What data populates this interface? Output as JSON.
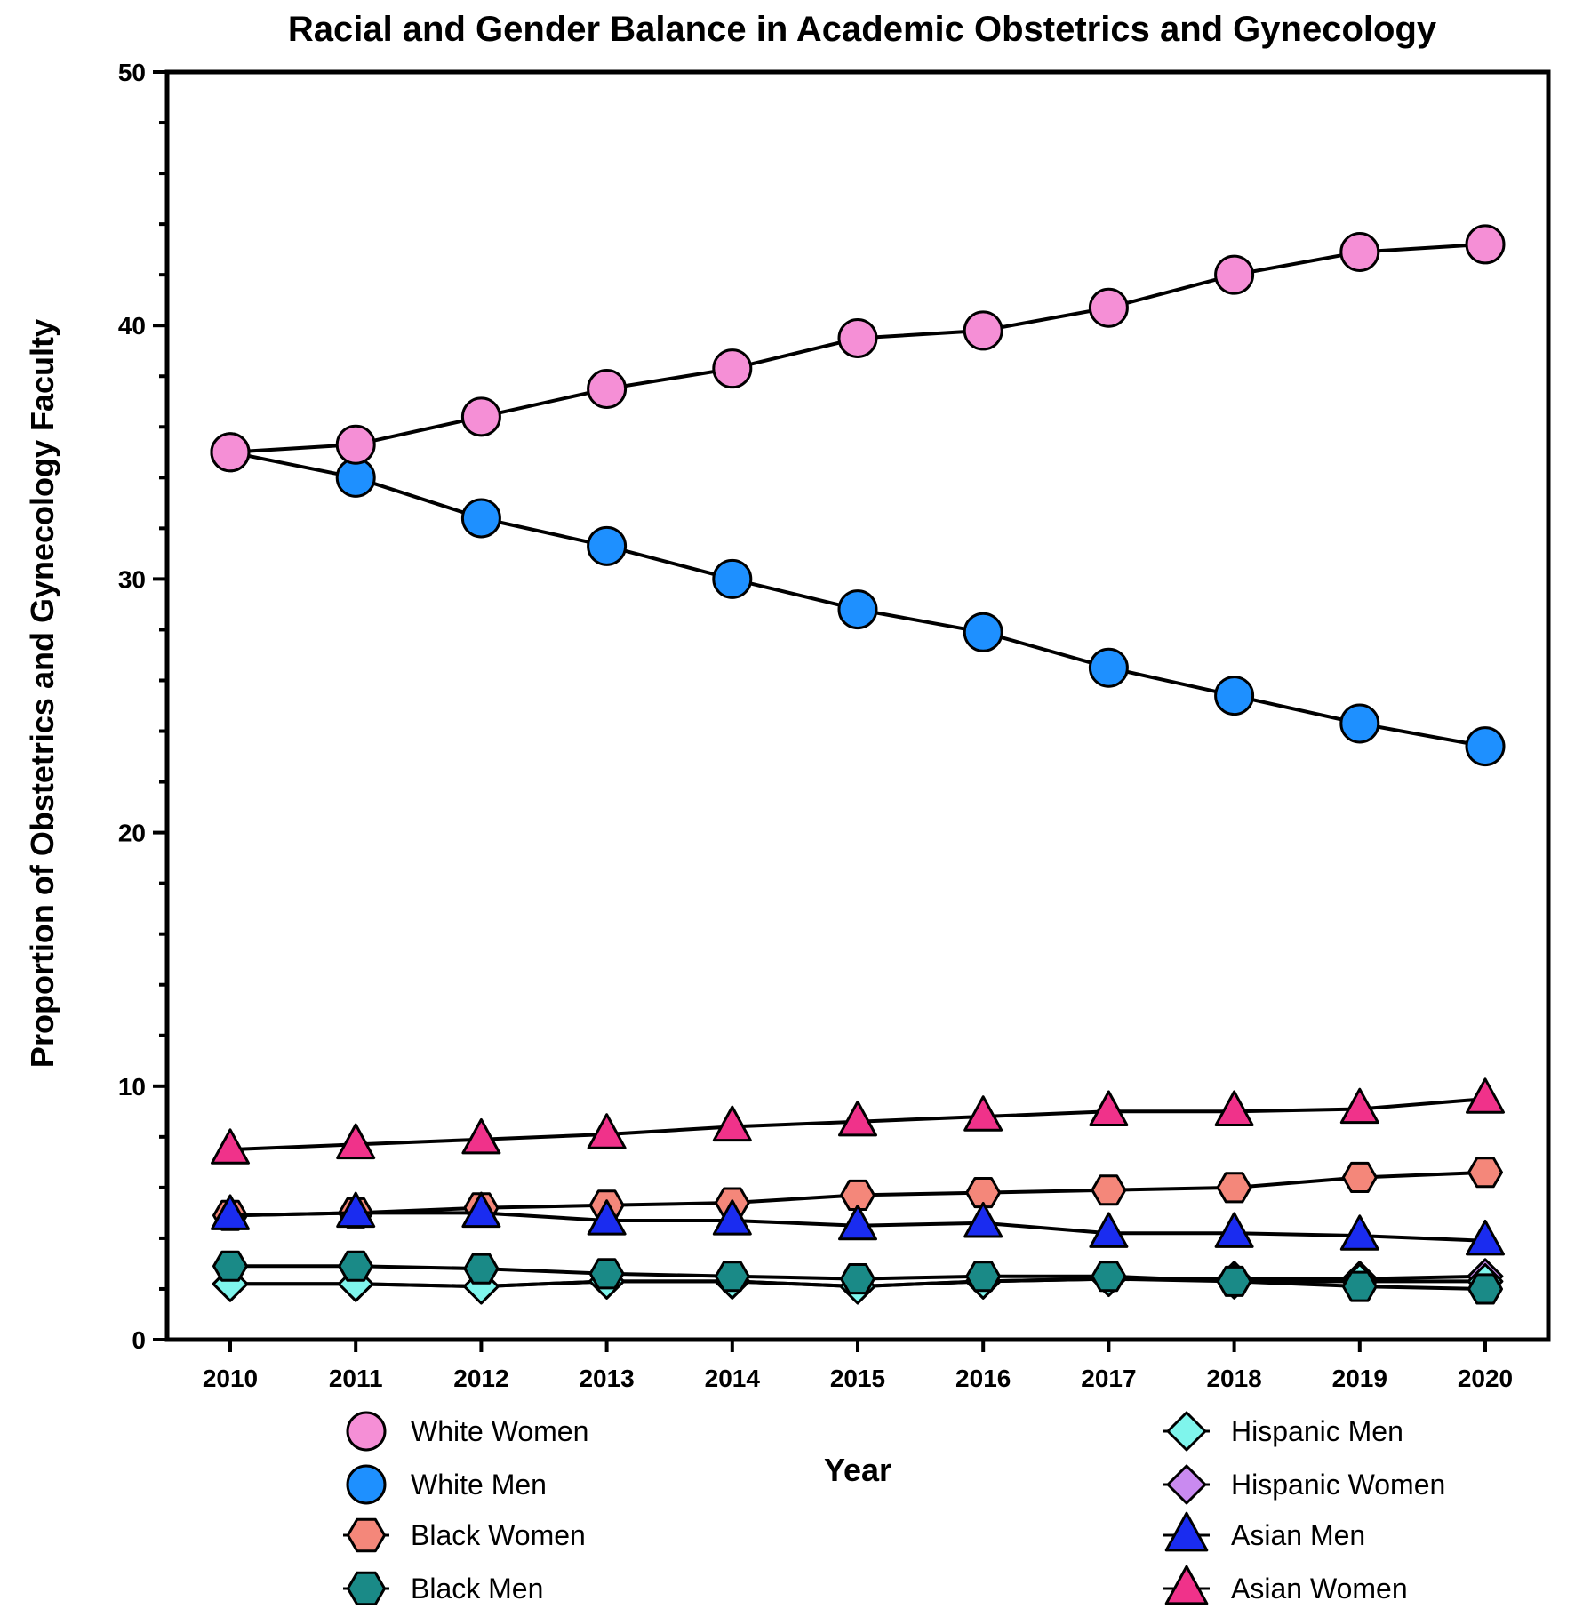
{
  "chart_data": {
    "type": "line",
    "title": "Racial and Gender Balance in Academic Obstetrics and Gynecology",
    "xlabel": "Year",
    "ylabel": "Proportion of Obstetrics and Gynecology Faculty",
    "ylim": [
      0,
      50
    ],
    "y_ticks": [
      0,
      10,
      20,
      30,
      40,
      50
    ],
    "x": [
      "2010",
      "2011",
      "2012",
      "2013",
      "2014",
      "2015",
      "2016",
      "2017",
      "2018",
      "2019",
      "2020"
    ],
    "grid": false,
    "legend_position": "bottom",
    "series": [
      {
        "name": "White Women",
        "marker": "circle",
        "color": "#F58FD6",
        "values": [
          35.0,
          35.3,
          36.4,
          37.5,
          38.3,
          39.5,
          39.8,
          40.7,
          42.0,
          42.9,
          43.2
        ]
      },
      {
        "name": "White Men",
        "marker": "circle",
        "color": "#1E90FF",
        "values": [
          35.0,
          34.0,
          32.4,
          31.3,
          30.0,
          28.8,
          27.9,
          26.5,
          25.4,
          24.3,
          23.4
        ]
      },
      {
        "name": "Black Women",
        "marker": "hexagon",
        "color": "#F4877A",
        "values": [
          4.9,
          5.0,
          5.2,
          5.3,
          5.4,
          5.7,
          5.8,
          5.9,
          6.0,
          6.4,
          6.6
        ]
      },
      {
        "name": "Black Men",
        "marker": "hexagon",
        "color": "#1A8A87",
        "values": [
          2.9,
          2.9,
          2.8,
          2.6,
          2.5,
          2.4,
          2.5,
          2.5,
          2.3,
          2.1,
          2.0
        ]
      },
      {
        "name": "Hispanic Men",
        "marker": "diamond",
        "color": "#7FF5EC",
        "values": [
          2.2,
          2.2,
          2.1,
          2.3,
          2.3,
          2.1,
          2.3,
          2.4,
          2.3,
          2.3,
          2.3
        ]
      },
      {
        "name": "Hispanic Women",
        "marker": "diamond",
        "color": "#C98AF0",
        "values": [
          2.2,
          2.2,
          2.1,
          2.3,
          2.3,
          2.1,
          2.3,
          2.4,
          2.4,
          2.4,
          2.5
        ]
      },
      {
        "name": "Asian Men",
        "marker": "triangle",
        "color": "#1A2CF0",
        "values": [
          4.9,
          5.0,
          5.0,
          4.7,
          4.7,
          4.5,
          4.6,
          4.2,
          4.2,
          4.1,
          3.9
        ]
      },
      {
        "name": "Asian Women",
        "marker": "triangle",
        "color": "#F0328A",
        "values": [
          7.5,
          7.7,
          7.9,
          8.1,
          8.4,
          8.6,
          8.8,
          9.0,
          9.0,
          9.1,
          9.5
        ]
      }
    ]
  }
}
